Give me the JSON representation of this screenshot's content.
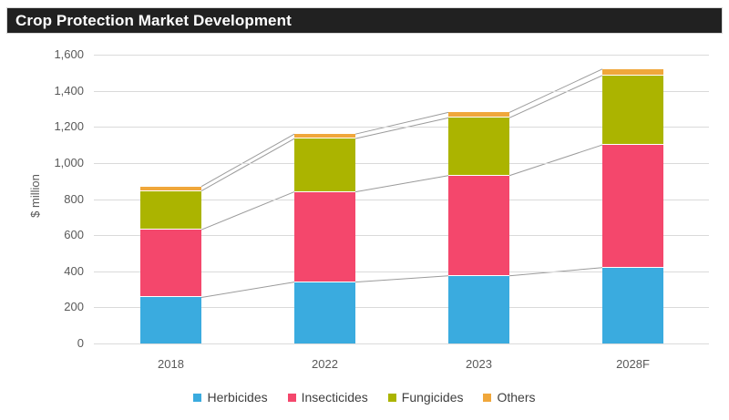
{
  "title": "Crop Protection Market Development",
  "colors": {
    "title_bg": "#212121",
    "title_text": "#ffffff",
    "gridline": "#dadada",
    "connector": "#9b9b9b",
    "axis_text": "#595959",
    "legend_text": "#3f3f3f",
    "segment_gap": "#ffffff"
  },
  "chart_data": {
    "type": "bar",
    "stacked": true,
    "title": "Crop Protection Market Development",
    "categories": [
      "2018",
      "2022",
      "2023",
      "2028F"
    ],
    "series": [
      {
        "name": "Herbicides",
        "color": "#3aabdf",
        "values": [
          255,
          340,
          375,
          420
        ]
      },
      {
        "name": "Insecticides",
        "color": "#f4476c",
        "values": [
          375,
          500,
          555,
          680
        ]
      },
      {
        "name": "Fungicides",
        "color": "#abb400",
        "values": [
          215,
          295,
          320,
          385
        ]
      },
      {
        "name": "Others",
        "color": "#f0a73b",
        "values": [
          25,
          25,
          30,
          35
        ]
      }
    ],
    "totals": [
      870,
      1160,
      1280,
      1520
    ],
    "xlabel": "",
    "ylabel": "$ million",
    "ylim": [
      0,
      1600
    ],
    "ytick_step": 200,
    "ytick_labels": [
      "0",
      "200",
      "400",
      "600",
      "800",
      "1,000",
      "1,200",
      "1,400",
      "1,600"
    ],
    "grid": true,
    "legend_position": "bottom",
    "connector_lines": true
  }
}
